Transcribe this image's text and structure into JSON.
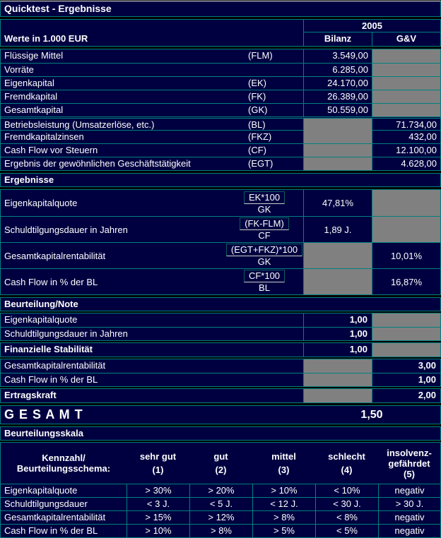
{
  "title": "Quicktest - Ergebnisse",
  "header": {
    "year": "2005",
    "unit_label": "Werte in 1.000 EUR",
    "col_bilanz": "Bilanz",
    "col_guv": "G&V"
  },
  "balance": {
    "rows": [
      {
        "label": "Flüssige Mittel",
        "code": "(FLM)",
        "bilanz": "3.549,00"
      },
      {
        "label": "Vorräte",
        "code": "",
        "bilanz": "6.285,00"
      },
      {
        "label": "Eigenkapital",
        "code": "(EK)",
        "bilanz": "24.170,00"
      },
      {
        "label": "Fremdkapital",
        "code": "(FK)",
        "bilanz": "26.389,00"
      },
      {
        "label": "Gesamtkapital",
        "code": "(GK)",
        "bilanz": "50.559,00"
      },
      {
        "label": "Betriebsleistung (Umsatzerlöse, etc.)",
        "code": "(BL)",
        "guv": "71.734,00"
      },
      {
        "label": "Fremdkapitalzinsen",
        "code": "(FKZ)",
        "guv": "432,00"
      },
      {
        "label": "Cash Flow vor Steuern",
        "code": "(CF)",
        "guv": "12.100,00"
      },
      {
        "label": "Ergebnis der gewöhnlichen Geschäftstätigkeit",
        "code": "(EGT)",
        "guv": "4.628,00"
      }
    ]
  },
  "ergebnisse": {
    "section_title": "Ergebnisse",
    "rows": [
      {
        "label": "Eigenkapitalquote",
        "numerator": "EK*100",
        "denominator": "GK",
        "bilanz": "47,81%"
      },
      {
        "label": "Schuldtilgungsdauer in Jahren",
        "numerator": "(FK-FLM)",
        "denominator": "CF",
        "bilanz": "1,89 J."
      },
      {
        "label": "Gesamtkapitalrentabilität",
        "numerator": "(EGT+FKZ)*100",
        "denominator": "GK",
        "guv": "10,01%"
      },
      {
        "label": "Cash Flow in % der BL",
        "numerator": "CF*100",
        "denominator": "BL",
        "guv": "16,87%"
      }
    ]
  },
  "beurteilung": {
    "section_title": "Beurteilung/Note",
    "rows": [
      {
        "label": "Eigenkapitalquote",
        "bilanz": "1,00"
      },
      {
        "label": "Schuldtilgungsdauer in Jahren",
        "bilanz": "1,00"
      },
      {
        "label": "Finanzielle Stabilität",
        "bilanz": "1,00"
      },
      {
        "label": "Gesamtkapitalrentabilität",
        "guv": "3,00"
      },
      {
        "label": "Cash Flow in % der BL",
        "guv": "1,00"
      },
      {
        "label": "Ertragskraft",
        "guv": "2,00"
      }
    ]
  },
  "gesamt": {
    "label": "G E S A M T",
    "value": "1,50"
  },
  "skala": {
    "section_title": "Beurteilungsskala",
    "header_col": {
      "line1": "Kennzahl/",
      "line2": "Beurteilungsschema:"
    },
    "columns": [
      {
        "line1": "sehr gut",
        "line2": "(1)"
      },
      {
        "line1": "gut",
        "line2": "(2)"
      },
      {
        "line1": "mittel",
        "line2": "(3)"
      },
      {
        "line1": "schlecht",
        "line2": "(4)"
      },
      {
        "line1": "insolvenz-",
        "line2": "gefährdet",
        "line3": "(5)"
      }
    ],
    "rows": [
      {
        "label": "Eigenkapitalquote",
        "values": [
          "> 30%",
          "> 20%",
          "> 10%",
          "< 10%",
          "negativ"
        ]
      },
      {
        "label": "Schuldtilgungsdauer",
        "values": [
          "< 3 J.",
          "< 5 J.",
          "< 12 J.",
          "< 30 J.",
          "> 30 J."
        ]
      },
      {
        "label": "Gesamtkapitalrentabilität",
        "values": [
          "> 15%",
          "> 12%",
          "> 8%",
          "< 8%",
          "negativ"
        ]
      },
      {
        "label": "Cash Flow in % der BL",
        "values": [
          "> 10%",
          "> 8%",
          "> 5%",
          "< 5%",
          "negativ"
        ]
      }
    ]
  },
  "colors": {
    "background": "#000040",
    "grid_border": "#008080",
    "disabled_cell": "#808080",
    "text": "#ffffff"
  }
}
